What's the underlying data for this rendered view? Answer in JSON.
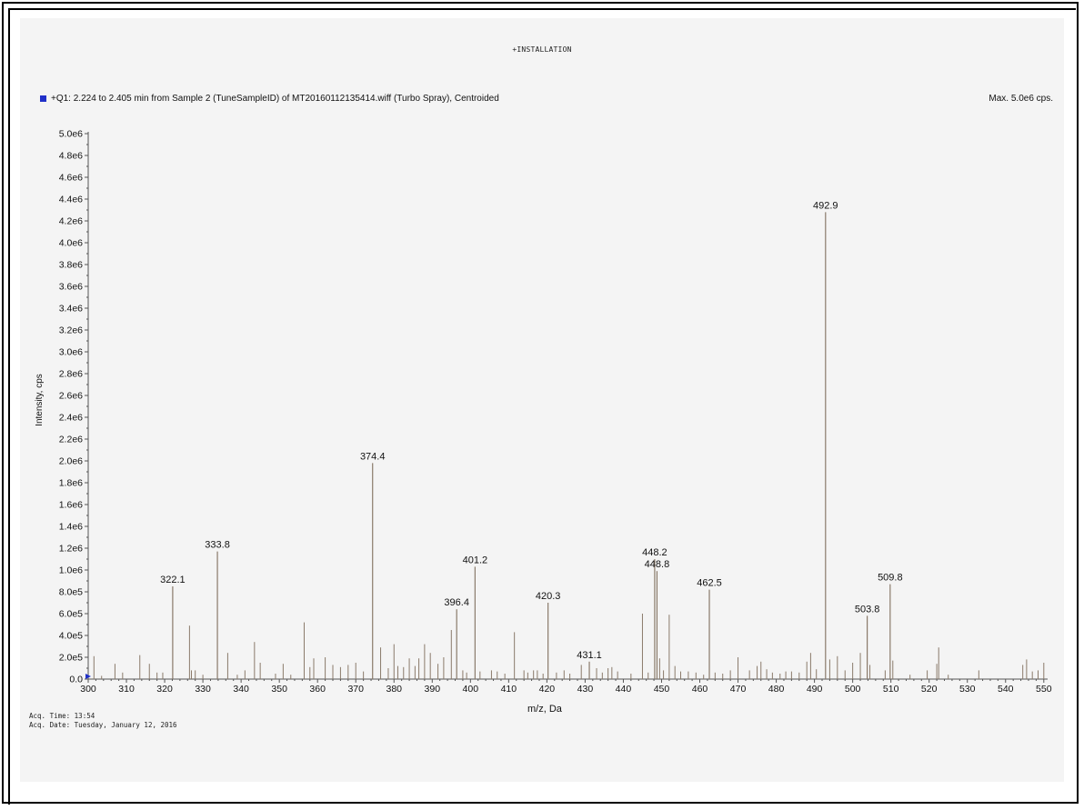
{
  "header": {
    "title": "+INSTALLATION",
    "legend_text": "+Q1: 2.224 to 2.405 min from Sample 2 (TuneSampleID) of MT20160112135414.wiff (Turbo Spray), Centroided",
    "max_text": "Max. 5.0e6 cps."
  },
  "footer": {
    "acq_time": "Acq. Time: 13:54",
    "acq_date": "Acq. Date: Tuesday, January 12, 2016"
  },
  "colors": {
    "legend_swatch": "#2030c8",
    "peak_line": "#8a7a6a",
    "axis": "#555555"
  },
  "chart_data": {
    "type": "bar",
    "title": "",
    "xlabel": "m/z, Da",
    "ylabel": "Intensity, cps",
    "xlim": [
      300,
      551
    ],
    "ylim": [
      0,
      5000000
    ],
    "xticks": [
      "300",
      "310",
      "320",
      "330",
      "340",
      "350",
      "360",
      "370",
      "380",
      "390",
      "400",
      "410",
      "420",
      "430",
      "440",
      "450",
      "460",
      "470",
      "480",
      "490",
      "500",
      "510",
      "520",
      "530",
      "540",
      "550"
    ],
    "yticks": [
      "0.0",
      "2.0e5",
      "4.0e5",
      "6.0e5",
      "8.0e5",
      "1.0e6",
      "1.2e6",
      "1.4e6",
      "1.6e6",
      "1.8e6",
      "2.0e6",
      "2.2e6",
      "2.4e6",
      "2.6e6",
      "2.8e6",
      "3.0e6",
      "3.2e6",
      "3.4e6",
      "3.6e6",
      "3.8e6",
      "4.0e6",
      "4.2e6",
      "4.4e6",
      "4.6e6",
      "4.8e6",
      "5.0e6"
    ],
    "labeled_peaks": [
      {
        "mz": 322.1,
        "label": "322.1",
        "intensity": 850000
      },
      {
        "mz": 333.8,
        "label": "333.8",
        "intensity": 1170000
      },
      {
        "mz": 374.4,
        "label": "374.4",
        "intensity": 1980000
      },
      {
        "mz": 396.4,
        "label": "396.4",
        "intensity": 640000
      },
      {
        "mz": 401.2,
        "label": "401.2",
        "intensity": 1030000
      },
      {
        "mz": 420.3,
        "label": "420.3",
        "intensity": 700000
      },
      {
        "mz": 431.1,
        "label": "431.1",
        "intensity": 160000
      },
      {
        "mz": 448.2,
        "label": "448.2",
        "intensity": 1100000
      },
      {
        "mz": 448.8,
        "label": "448.8",
        "intensity": 990000
      },
      {
        "mz": 462.5,
        "label": "462.5",
        "intensity": 820000
      },
      {
        "mz": 492.9,
        "label": "492.9",
        "intensity": 4280000
      },
      {
        "mz": 503.8,
        "label": "503.8",
        "intensity": 580000
      },
      {
        "mz": 509.8,
        "label": "509.8",
        "intensity": 870000
      }
    ],
    "minor_peaks": [
      [
        301.5,
        210000
      ],
      [
        303.5,
        30000
      ],
      [
        307,
        140000
      ],
      [
        309,
        60000
      ],
      [
        313.5,
        220000
      ],
      [
        316,
        140000
      ],
      [
        318,
        60000
      ],
      [
        319.5,
        60000
      ],
      [
        326.5,
        490000
      ],
      [
        327,
        80000
      ],
      [
        328,
        80000
      ],
      [
        330,
        40000
      ],
      [
        336.5,
        240000
      ],
      [
        339,
        40000
      ],
      [
        341,
        80000
      ],
      [
        343.5,
        340000
      ],
      [
        345,
        150000
      ],
      [
        349,
        50000
      ],
      [
        351,
        140000
      ],
      [
        353,
        40000
      ],
      [
        356.5,
        520000
      ],
      [
        358,
        110000
      ],
      [
        359,
        190000
      ],
      [
        362,
        200000
      ],
      [
        364,
        130000
      ],
      [
        366,
        110000
      ],
      [
        368,
        130000
      ],
      [
        370,
        150000
      ],
      [
        372,
        70000
      ],
      [
        376.5,
        290000
      ],
      [
        378.5,
        100000
      ],
      [
        380,
        320000
      ],
      [
        381,
        120000
      ],
      [
        382.5,
        110000
      ],
      [
        384,
        190000
      ],
      [
        385.5,
        120000
      ],
      [
        386.5,
        190000
      ],
      [
        388,
        320000
      ],
      [
        389.5,
        240000
      ],
      [
        391.5,
        140000
      ],
      [
        393,
        200000
      ],
      [
        395,
        450000
      ],
      [
        398,
        80000
      ],
      [
        399,
        60000
      ],
      [
        402.5,
        70000
      ],
      [
        405.5,
        80000
      ],
      [
        407,
        70000
      ],
      [
        409,
        50000
      ],
      [
        411.5,
        430000
      ],
      [
        414,
        80000
      ],
      [
        415,
        60000
      ],
      [
        416.5,
        80000
      ],
      [
        417.5,
        80000
      ],
      [
        419,
        50000
      ],
      [
        422.5,
        60000
      ],
      [
        424.5,
        80000
      ],
      [
        426,
        50000
      ],
      [
        429,
        130000
      ],
      [
        433,
        100000
      ],
      [
        434.5,
        60000
      ],
      [
        436,
        100000
      ],
      [
        437,
        110000
      ],
      [
        438.5,
        70000
      ],
      [
        442,
        50000
      ],
      [
        445,
        600000
      ],
      [
        446.5,
        60000
      ],
      [
        449.5,
        190000
      ],
      [
        450.5,
        80000
      ],
      [
        452,
        590000
      ],
      [
        453.5,
        120000
      ],
      [
        455,
        70000
      ],
      [
        457,
        70000
      ],
      [
        459,
        60000
      ],
      [
        461,
        40000
      ],
      [
        464,
        60000
      ],
      [
        466,
        50000
      ],
      [
        468,
        80000
      ],
      [
        470,
        200000
      ],
      [
        473,
        80000
      ],
      [
        475,
        120000
      ],
      [
        476,
        160000
      ],
      [
        477.5,
        90000
      ],
      [
        479,
        60000
      ],
      [
        481,
        50000
      ],
      [
        482.5,
        70000
      ],
      [
        484,
        70000
      ],
      [
        486,
        60000
      ],
      [
        488,
        160000
      ],
      [
        489,
        240000
      ],
      [
        490.5,
        90000
      ],
      [
        494,
        180000
      ],
      [
        496,
        210000
      ],
      [
        498,
        80000
      ],
      [
        500,
        150000
      ],
      [
        502,
        240000
      ],
      [
        504.5,
        130000
      ],
      [
        508.5,
        80000
      ],
      [
        510.5,
        170000
      ],
      [
        515,
        40000
      ],
      [
        519.5,
        80000
      ],
      [
        522,
        140000
      ],
      [
        522.5,
        290000
      ],
      [
        525,
        40000
      ],
      [
        533,
        80000
      ],
      [
        544.5,
        130000
      ],
      [
        545.5,
        180000
      ],
      [
        547,
        70000
      ],
      [
        548.5,
        80000
      ],
      [
        550,
        150000
      ]
    ]
  }
}
